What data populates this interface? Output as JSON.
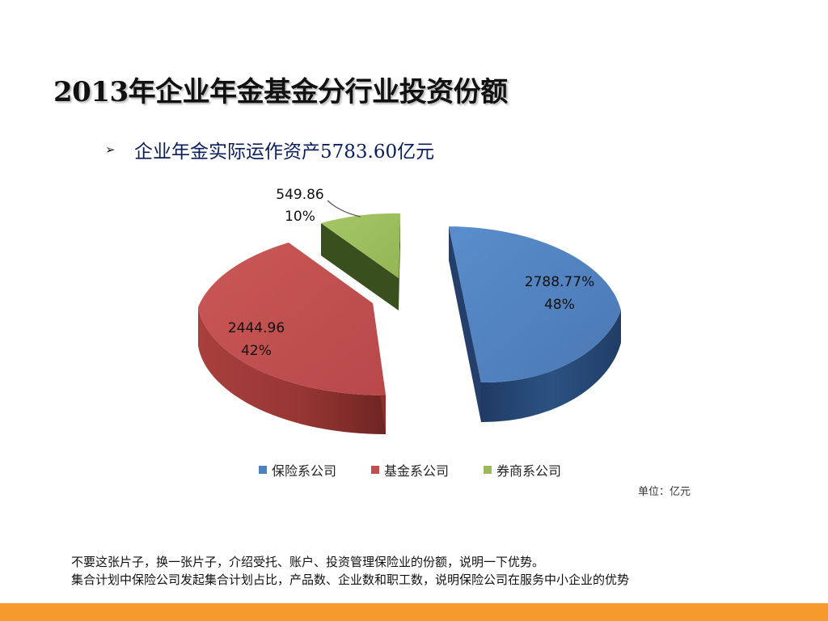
{
  "slide": {
    "title": "2013年企业年金基金分行业投资份额",
    "bullet_marker": "➢",
    "bullet_text": "企业年金实际运作资产5783.60亿元",
    "unit": "单位：亿元",
    "notes": [
      "不要这张片子，换一张片子，介绍受托、账户、投资管理保险业的份额，说明一下优势。",
      "集合计划中保险公司发起集合计划占比，产品数、企业数和职工数，说明保险公司在服务中小企业的优势"
    ],
    "bottom_bar_color": "#f79a2e"
  },
  "chart_data": {
    "type": "pie",
    "style": "3d-exploded",
    "legend_position": "bottom",
    "slices": [
      {
        "name": "保险系公司",
        "value": 2788.77,
        "value_label": "2788.77%",
        "percent_label": "48%",
        "color": "#4f81bd"
      },
      {
        "name": "基金系公司",
        "value": 2444.96,
        "value_label": "2444.96",
        "percent_label": "42%",
        "color": "#c0504d"
      },
      {
        "name": "券商系公司",
        "value": 549.86,
        "value_label": "549.86",
        "percent_label": "10%",
        "color": "#9bbb59"
      }
    ]
  }
}
